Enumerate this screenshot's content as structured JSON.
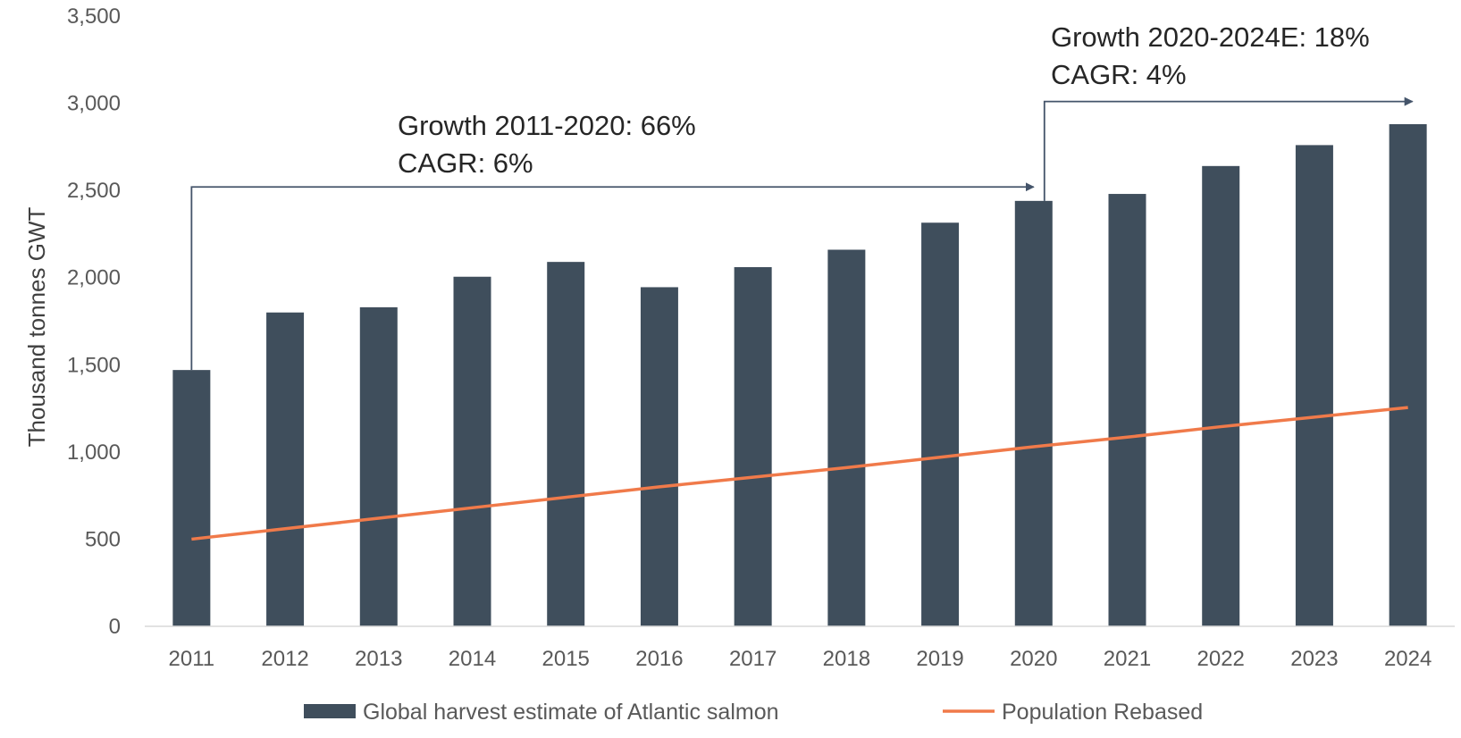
{
  "chart_data": {
    "type": "bar",
    "categories": [
      "2011",
      "2012",
      "2013",
      "2014",
      "2015",
      "2016",
      "2017",
      "2018",
      "2019",
      "2020",
      "2021",
      "2022",
      "2023",
      "2024"
    ],
    "series": [
      {
        "name": "Global harvest estimate of Atlantic salmon",
        "type": "bar",
        "color": "#3f4e5c",
        "values": [
          1470,
          1800,
          1830,
          2005,
          2090,
          1945,
          2060,
          2160,
          2315,
          2440,
          2480,
          2640,
          2760,
          2880
        ]
      },
      {
        "name": "Population Rebased",
        "type": "line",
        "color": "#f07a4a",
        "values": [
          500,
          560,
          620,
          680,
          740,
          800,
          855,
          910,
          970,
          1030,
          1085,
          1145,
          1200,
          1255
        ]
      }
    ],
    "ylabel": "Thousand tonnes GWT",
    "ylim": [
      0,
      3500
    ],
    "yticks": [
      0,
      500,
      1000,
      1500,
      2000,
      2500,
      3000,
      3500
    ],
    "ytick_labels": [
      "0",
      "500",
      "1,000",
      "1,500",
      "2,000",
      "2,500",
      "3,000",
      "3,500"
    ],
    "grid": false,
    "legend_position": "bottom",
    "annotations": [
      {
        "lines": [
          "Growth 2011-2020: 66%",
          "CAGR: 6%"
        ],
        "from": "2011",
        "to": "2020",
        "arrow_level": 2520
      },
      {
        "lines": [
          "Growth 2020-2024E: 18%",
          "CAGR: 4%"
        ],
        "from": "2020",
        "to": "2024",
        "arrow_level": 3010
      }
    ],
    "annotation_color": "#44546a"
  }
}
